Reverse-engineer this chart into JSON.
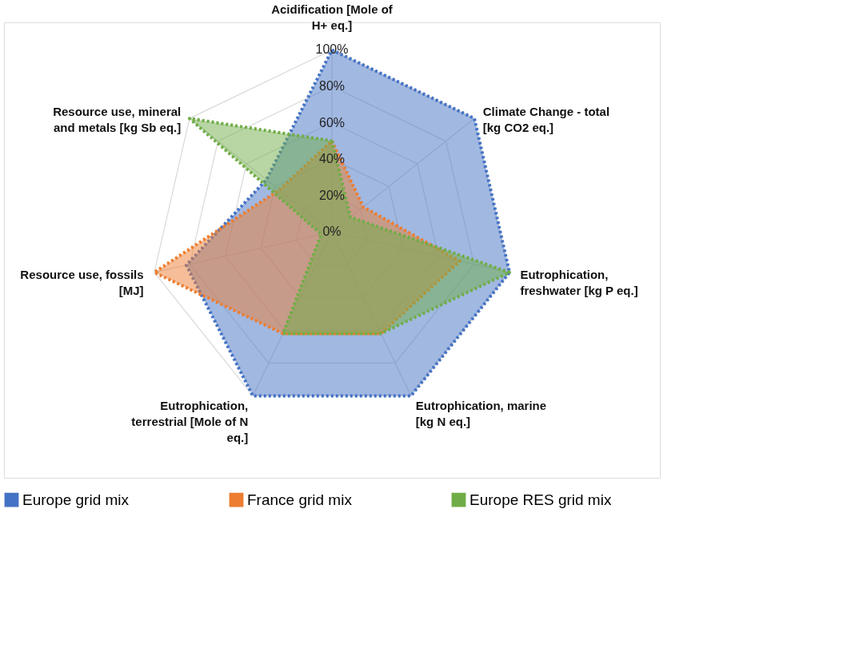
{
  "chart_data": {
    "type": "radar",
    "categories": [
      "Acidification [Mole of H+ eq.]",
      "Climate Change - total [kg CO2 eq.]",
      "Eutrophication, freshwater [kg P eq.]",
      "Eutrophication, marine [kg N eq.]",
      "Eutrophication, terrestrial [Mole of N eq.]",
      "Resource use, fossils [MJ]",
      "Resource use, mineral and metals [kg Sb eq.]"
    ],
    "series": [
      {
        "name": "Europe grid mix",
        "color": "#4472c4",
        "values": [
          100,
          100,
          100,
          100,
          100,
          82,
          46
        ]
      },
      {
        "name": "France grid mix",
        "color": "#ed7d31",
        "values": [
          50,
          22,
          72,
          62,
          62,
          100,
          37
        ]
      },
      {
        "name": "Europe RES grid mix",
        "color": "#70ad47",
        "values": [
          50,
          13,
          100,
          62,
          62,
          6,
          100
        ]
      }
    ],
    "ylim": [
      0,
      100
    ],
    "yticks": [
      {
        "value": 0,
        "label": "0%"
      },
      {
        "value": 20,
        "label": "20%"
      },
      {
        "value": 40,
        "label": "40%"
      },
      {
        "value": 60,
        "label": "60%"
      },
      {
        "value": 80,
        "label": "80%"
      },
      {
        "value": 100,
        "label": "100%"
      }
    ],
    "grid": true,
    "legend": "bottom",
    "line_style": "dotted"
  }
}
